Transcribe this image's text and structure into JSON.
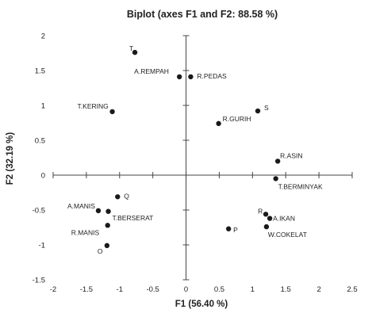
{
  "chart_data": {
    "type": "scatter",
    "title": "Biplot (axes F1 and F2: 88.58 %)",
    "xlabel": "F1 (56.40 %)",
    "ylabel": "F2 (32.19 %)",
    "xlim": [
      -2,
      2.5
    ],
    "ylim": [
      -1.5,
      2
    ],
    "xticks": [
      "-2",
      "-1.5",
      "-1",
      "-0.5",
      "0",
      "0.5",
      "1",
      "1.5",
      "2",
      "2.5"
    ],
    "yticks": [
      "2",
      "1.5",
      "1",
      "0.5",
      "0",
      "-0.5",
      "-1",
      "-1.5"
    ],
    "grid": false,
    "legend": "none",
    "marker_color": "#1a1a1a",
    "axis_color": "#444444",
    "points": [
      {
        "label": "T",
        "x": -0.77,
        "y": 1.76
      },
      {
        "label": "A.REMPAH",
        "x": -0.1,
        "y": 1.41
      },
      {
        "label": "R.PEDAS",
        "x": 0.07,
        "y": 1.41
      },
      {
        "label": "T.KERING",
        "x": -1.11,
        "y": 0.91
      },
      {
        "label": "S",
        "x": 1.08,
        "y": 0.92
      },
      {
        "label": "R.GURIH",
        "x": 0.49,
        "y": 0.74
      },
      {
        "label": "R.ASIN",
        "x": 1.38,
        "y": 0.2
      },
      {
        "label": "T.BERMINYAK",
        "x": 1.35,
        "y": -0.05
      },
      {
        "label": "Q",
        "x": -1.03,
        "y": -0.31
      },
      {
        "label": "A.MANIS",
        "x": -1.32,
        "y": -0.51
      },
      {
        "label": "T.BERSERAT",
        "x": -1.17,
        "y": -0.52
      },
      {
        "label": "R",
        "x": 1.2,
        "y": -0.56
      },
      {
        "label": "A.IKAN",
        "x": 1.26,
        "y": -0.62
      },
      {
        "label": "W.COKELAT",
        "x": 1.21,
        "y": -0.74
      },
      {
        "label": "P",
        "x": 0.64,
        "y": -0.77
      },
      {
        "label": "R.MANIS",
        "x": -1.18,
        "y": -0.72
      },
      {
        "label": "O",
        "x": -1.19,
        "y": -1.01
      }
    ]
  }
}
